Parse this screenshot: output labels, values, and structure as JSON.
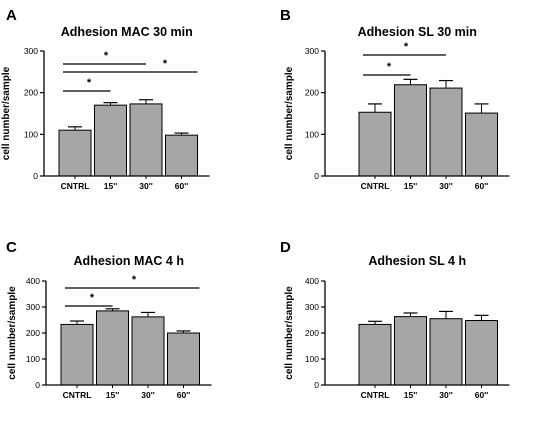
{
  "chart_data": [
    {
      "panel": "A",
      "type": "bar",
      "title": "Adhesion MAC 30 min",
      "ylabel": "cell number/sample",
      "categories": [
        "CNTRL",
        "15''",
        "30''",
        "60''"
      ],
      "values": [
        110,
        170,
        173,
        98
      ],
      "errors": [
        8,
        6,
        10,
        5
      ],
      "ylim": [
        0,
        300
      ],
      "yticks": [
        "0",
        "100",
        "200",
        "300"
      ],
      "significance": [
        {
          "from": 0,
          "to": 1,
          "label": "*"
        },
        {
          "from": 0,
          "to": 2,
          "label": "*"
        },
        {
          "from": 0,
          "to": 3,
          "label": "*"
        }
      ]
    },
    {
      "panel": "B",
      "type": "bar",
      "title": "Adhesion SL 30 min",
      "ylabel": "cell number/sample",
      "categories": [
        "CNTRL",
        "15''",
        "30''",
        "60''"
      ],
      "values": [
        153,
        219,
        211,
        151
      ],
      "errors": [
        20,
        13,
        18,
        22
      ],
      "ylim": [
        0,
        300
      ],
      "yticks": [
        "0",
        "100",
        "200",
        "300"
      ],
      "significance": [
        {
          "from": 0,
          "to": 1,
          "label": "*"
        },
        {
          "from": 0,
          "to": 2,
          "label": "*"
        }
      ]
    },
    {
      "panel": "C",
      "type": "bar",
      "title": "Adhesion MAC 4 h",
      "ylabel": "cell number/sample",
      "categories": [
        "CNTRL",
        "15''",
        "30''",
        "60''"
      ],
      "values": [
        233,
        285,
        262,
        200
      ],
      "errors": [
        13,
        8,
        17,
        8
      ],
      "ylim": [
        0,
        400
      ],
      "yticks": [
        "0",
        "100",
        "200",
        "300",
        "400"
      ],
      "significance": [
        {
          "from": 0,
          "to": 1,
          "label": "*"
        },
        {
          "from": 0,
          "to": 3,
          "label": "*"
        }
      ]
    },
    {
      "panel": "D",
      "type": "bar",
      "title": "Adhesion SL 4 h",
      "ylabel": "cell number/sample",
      "categories": [
        "CNTRL",
        "15''",
        "30''",
        "60''"
      ],
      "values": [
        233,
        263,
        255,
        248
      ],
      "errors": [
        12,
        14,
        28,
        20
      ],
      "ylim": [
        0,
        400
      ],
      "yticks": [
        "0",
        "100",
        "200",
        "300",
        "400"
      ],
      "significance": []
    }
  ],
  "colors": {
    "bar_fill": "#a6a6a6",
    "axis": "#000000"
  }
}
